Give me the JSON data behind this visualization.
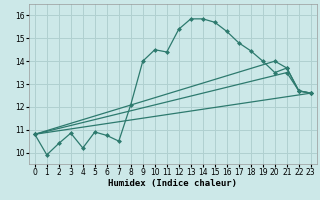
{
  "xlabel": "Humidex (Indice chaleur)",
  "xlim": [
    -0.5,
    23.5
  ],
  "ylim": [
    9.5,
    16.5
  ],
  "xticks": [
    0,
    1,
    2,
    3,
    4,
    5,
    6,
    7,
    8,
    9,
    10,
    11,
    12,
    13,
    14,
    15,
    16,
    17,
    18,
    19,
    20,
    21,
    22,
    23
  ],
  "yticks": [
    10,
    11,
    12,
    13,
    14,
    15,
    16
  ],
  "bg_color": "#cce8e8",
  "grid_color": "#b0d0d0",
  "line_color": "#2d7a6e",
  "curve1_x": [
    0,
    1,
    2,
    3,
    4,
    5,
    6,
    7,
    8,
    9,
    10,
    11,
    12,
    13,
    14,
    15,
    16,
    17,
    18,
    19,
    20,
    21,
    22,
    23
  ],
  "curve1_y": [
    10.8,
    9.9,
    10.4,
    10.85,
    10.2,
    10.9,
    10.75,
    10.5,
    12.1,
    14.0,
    14.5,
    14.4,
    15.4,
    15.85,
    15.85,
    15.7,
    15.3,
    14.8,
    14.45,
    14.0,
    13.5,
    13.7,
    12.7,
    12.6
  ],
  "curve2_x": [
    0,
    23
  ],
  "curve2_y": [
    10.8,
    12.6
  ],
  "curve3_x": [
    0,
    21,
    22,
    23
  ],
  "curve3_y": [
    10.8,
    13.5,
    12.7,
    12.6
  ],
  "curve4_x": [
    0,
    20,
    21,
    22,
    23
  ],
  "curve4_y": [
    10.8,
    14.0,
    13.7,
    12.7,
    12.6
  ],
  "xlabel_fontsize": 6.5,
  "tick_fontsize": 5.5
}
